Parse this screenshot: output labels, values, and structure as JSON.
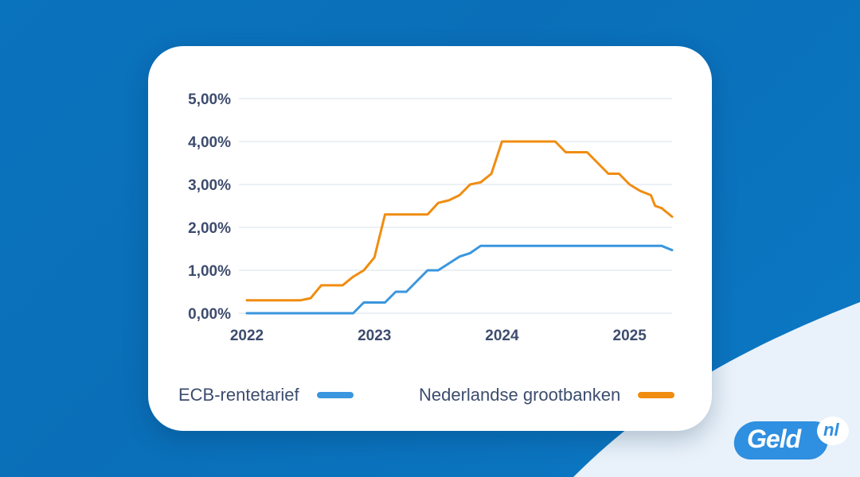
{
  "chart_data": {
    "type": "line",
    "y_tick_labels": [
      "0,00%",
      "1,00%",
      "2,00%",
      "3,00%",
      "4,00%",
      "5,00%"
    ],
    "x_tick_labels": [
      "2022",
      "2023",
      "2024",
      "2025"
    ],
    "ylim": [
      0,
      5
    ],
    "xlim": [
      2022.0,
      2025.333
    ],
    "grid": true,
    "legend_position": "bottom",
    "series": [
      {
        "name": "ECB-rentetarief",
        "color": "#3a96de",
        "x": [
          2022.0,
          2022.833,
          2022.917,
          2023.083,
          2023.167,
          2023.25,
          2023.333,
          2023.417,
          2023.5,
          2023.667,
          2023.75,
          2023.833,
          2024.0,
          2024.5,
          2024.833,
          2025.0,
          2025.25,
          2025.333
        ],
        "y": [
          0.0,
          0.0,
          0.25,
          0.25,
          0.5,
          0.5,
          0.75,
          1.0,
          1.0,
          1.32,
          1.4,
          1.57,
          1.57,
          1.57,
          1.57,
          1.57,
          1.57,
          1.47
        ]
      },
      {
        "name": "Nederlandse grootbanken",
        "color": "#f08c10",
        "x": [
          2022.0,
          2022.417,
          2022.5,
          2022.583,
          2022.75,
          2022.833,
          2022.917,
          2023.0,
          2023.083,
          2023.25,
          2023.333,
          2023.417,
          2023.5,
          2023.583,
          2023.667,
          2023.75,
          2023.833,
          2023.917,
          2024.0,
          2024.083,
          2024.25,
          2024.417,
          2024.5,
          2024.583,
          2024.667,
          2024.75,
          2024.833,
          2024.917,
          2025.0,
          2025.083,
          2025.167,
          2025.2,
          2025.25,
          2025.333
        ],
        "y": [
          0.3,
          0.3,
          0.35,
          0.65,
          0.65,
          0.85,
          1.0,
          1.3,
          2.3,
          2.3,
          2.3,
          2.3,
          2.57,
          2.63,
          2.75,
          3.0,
          3.05,
          3.25,
          4.0,
          4.0,
          4.0,
          4.0,
          3.75,
          3.75,
          3.75,
          3.5,
          3.25,
          3.25,
          3.0,
          2.85,
          2.75,
          2.5,
          2.45,
          2.25
        ]
      }
    ]
  },
  "legend": {
    "ecb_label": "ECB-rentetarief",
    "nl_label": "Nederlandse grootbanken"
  },
  "colors": {
    "ecb": "#3a96de",
    "nl": "#f08c10",
    "grid": "#d7e0ec",
    "tick_text": "#3d4c6e"
  },
  "logo": {
    "text": "Geld",
    "suffix": "nl"
  }
}
